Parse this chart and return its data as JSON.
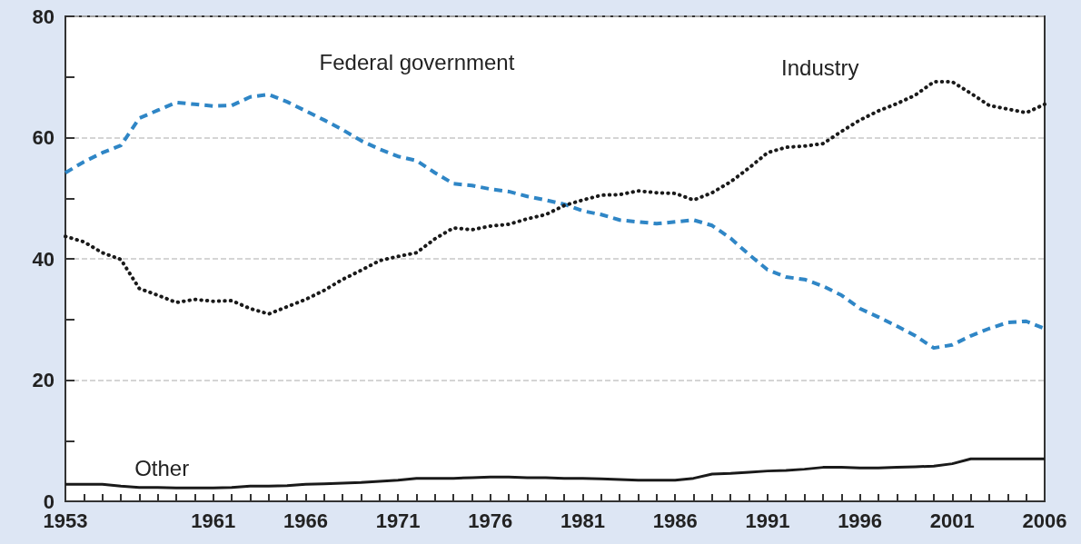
{
  "chart_data": {
    "type": "line",
    "x": [
      1953,
      1954,
      1955,
      1956,
      1957,
      1958,
      1959,
      1960,
      1961,
      1962,
      1963,
      1964,
      1965,
      1966,
      1967,
      1968,
      1969,
      1970,
      1971,
      1972,
      1973,
      1974,
      1975,
      1976,
      1977,
      1978,
      1979,
      1980,
      1981,
      1982,
      1983,
      1984,
      1985,
      1986,
      1987,
      1988,
      1989,
      1990,
      1991,
      1992,
      1993,
      1994,
      1995,
      1996,
      1997,
      1998,
      1999,
      2000,
      2001,
      2002,
      2003,
      2004,
      2005,
      2006
    ],
    "series": [
      {
        "name": "Federal government",
        "color": "#2f86c6",
        "line_style": "dashed",
        "values": [
          54.2,
          56.0,
          57.5,
          58.7,
          63.2,
          64.5,
          65.8,
          65.5,
          65.2,
          65.3,
          66.7,
          67.1,
          65.9,
          64.4,
          62.9,
          61.3,
          59.5,
          58.1,
          56.9,
          56.2,
          54.2,
          52.4,
          52.1,
          51.5,
          51.1,
          50.3,
          49.7,
          49.0,
          47.9,
          47.3,
          46.4,
          46.1,
          45.8,
          46.1,
          46.4,
          45.5,
          43.4,
          40.7,
          38.2,
          37.0,
          36.6,
          35.5,
          34.0,
          31.8,
          30.4,
          28.9,
          27.3,
          25.3,
          25.8,
          27.3,
          28.5,
          29.5,
          29.7,
          28.5
        ]
      },
      {
        "name": "Industry",
        "color": "#1a1a1a",
        "line_style": "dotted",
        "values": [
          43.7,
          42.8,
          41.0,
          39.9,
          35.1,
          34.0,
          32.8,
          33.3,
          33.0,
          33.1,
          31.8,
          30.9,
          32.1,
          33.3,
          34.8,
          36.6,
          38.1,
          39.7,
          40.4,
          41.0,
          43.3,
          45.1,
          44.8,
          45.4,
          45.7,
          46.6,
          47.3,
          48.8,
          49.7,
          50.5,
          50.6,
          51.2,
          50.9,
          50.8,
          49.7,
          50.9,
          52.7,
          55.0,
          57.5,
          58.4,
          58.6,
          59.0,
          61.0,
          62.9,
          64.4,
          65.6,
          67.0,
          69.2,
          69.2,
          67.3,
          65.3,
          64.7,
          64.1,
          65.5
        ]
      },
      {
        "name": "Other",
        "color": "#1a1a1a",
        "line_style": "solid",
        "values": [
          2.8,
          2.8,
          2.8,
          2.5,
          2.3,
          2.3,
          2.2,
          2.2,
          2.2,
          2.3,
          2.5,
          2.5,
          2.6,
          2.8,
          2.9,
          3.0,
          3.1,
          3.3,
          3.5,
          3.8,
          3.8,
          3.8,
          3.9,
          4.0,
          4.0,
          3.9,
          3.9,
          3.8,
          3.8,
          3.7,
          3.6,
          3.5,
          3.5,
          3.5,
          3.8,
          4.5,
          4.6,
          4.8,
          5.0,
          5.1,
          5.3,
          5.6,
          5.6,
          5.5,
          5.5,
          5.6,
          5.7,
          5.8,
          6.2,
          7.0,
          7.0,
          7.0,
          7.0,
          7.0
        ]
      }
    ],
    "xlim": [
      1953,
      2006
    ],
    "xticks": [
      1953,
      {
        "value": 1954,
        "label": null
      },
      {
        "value": 1955,
        "label": null
      },
      {
        "value": 1956,
        "label": null
      },
      {
        "value": 1957,
        "label": null
      },
      {
        "value": 1958,
        "label": null
      },
      {
        "value": 1959,
        "label": null
      },
      {
        "value": 1960,
        "label": null
      },
      1961,
      {
        "value": 1962,
        "label": null
      },
      {
        "value": 1963,
        "label": null
      },
      {
        "value": 1964,
        "label": null
      },
      {
        "value": 1965,
        "label": null
      },
      1966,
      {
        "value": 1967,
        "label": null
      },
      {
        "value": 1968,
        "label": null
      },
      {
        "value": 1969,
        "label": null
      },
      {
        "value": 1970,
        "label": null
      },
      1971,
      {
        "value": 1972,
        "label": null
      },
      {
        "value": 1973,
        "label": null
      },
      {
        "value": 1974,
        "label": null
      },
      {
        "value": 1975,
        "label": null
      },
      1976,
      {
        "value": 1977,
        "label": null
      },
      {
        "value": 1978,
        "label": null
      },
      {
        "value": 1979,
        "label": null
      },
      {
        "value": 1980,
        "label": null
      },
      1981,
      {
        "value": 1982,
        "label": null
      },
      {
        "value": 1983,
        "label": null
      },
      {
        "value": 1984,
        "label": null
      },
      {
        "value": 1985,
        "label": null
      },
      1986,
      {
        "value": 1987,
        "label": null
      },
      {
        "value": 1988,
        "label": null
      },
      {
        "value": 1989,
        "label": null
      },
      {
        "value": 1990,
        "label": null
      },
      1991,
      {
        "value": 1992,
        "label": null
      },
      {
        "value": 1993,
        "label": null
      },
      {
        "value": 1994,
        "label": null
      },
      {
        "value": 1995,
        "label": null
      },
      1996,
      {
        "value": 1997,
        "label": null
      },
      {
        "value": 1998,
        "label": null
      },
      {
        "value": 1999,
        "label": null
      },
      {
        "value": 2000,
        "label": null
      },
      2001,
      {
        "value": 2002,
        "label": null
      },
      {
        "value": 2003,
        "label": null
      },
      {
        "value": 2004,
        "label": null
      },
      {
        "value": 2005,
        "label": null
      },
      2006
    ],
    "ylim": [
      0,
      80
    ],
    "yticks": [
      0,
      {
        "value": 10,
        "label": null
      },
      20,
      {
        "value": 30,
        "label": null
      },
      40,
      {
        "value": 50,
        "label": null
      },
      60,
      {
        "value": 70,
        "label": null
      },
      80
    ],
    "grid": "y",
    "legend": false,
    "marker": "none"
  }
}
